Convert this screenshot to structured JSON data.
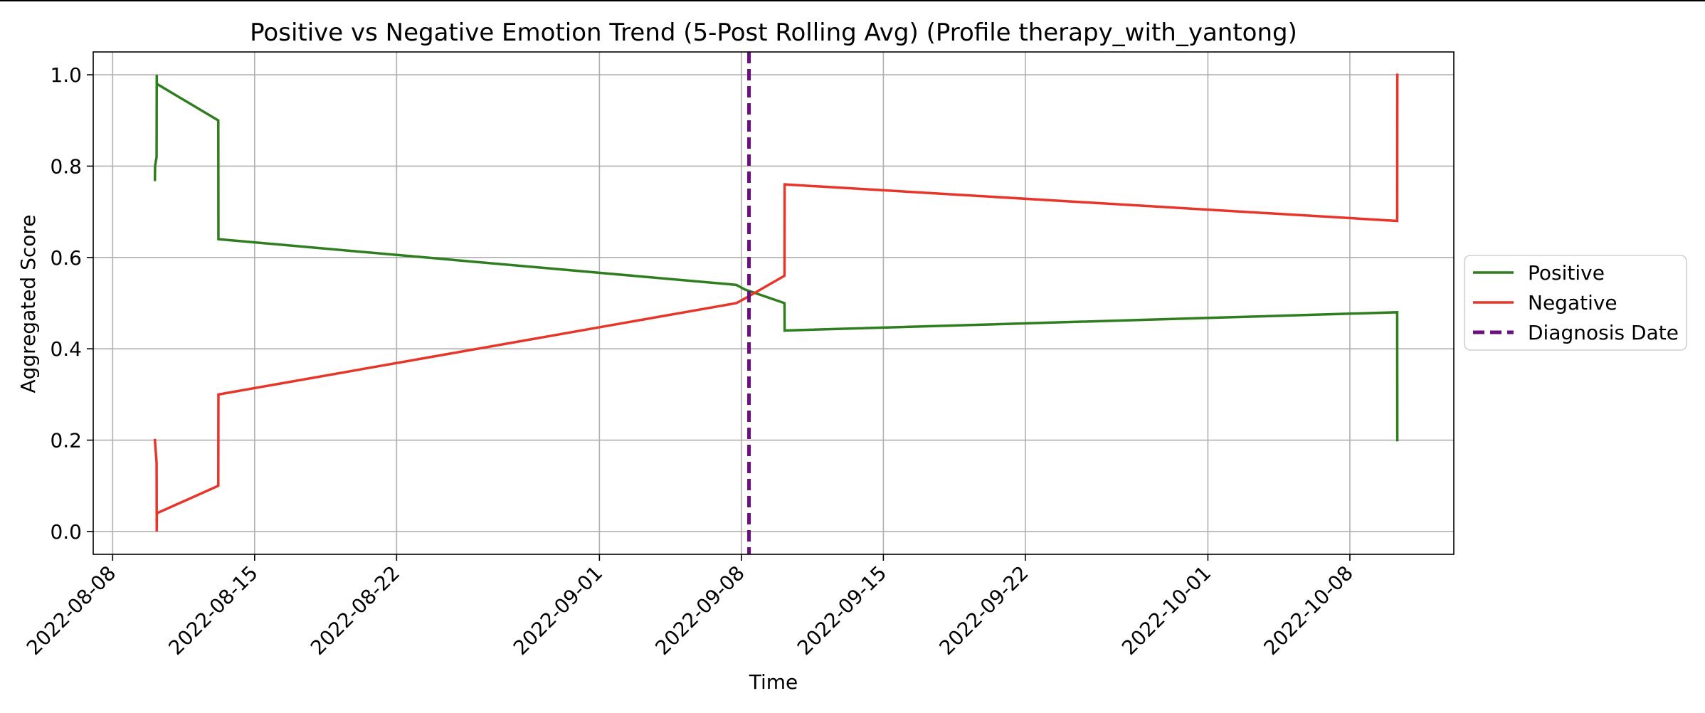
{
  "chart_data": {
    "type": "line",
    "title": "Positive vs Negative Emotion Trend (5-Post Rolling Avg) (Profile therapy_with_yantong)",
    "xlabel": "Time",
    "ylabel": "Aggregated Score",
    "x_type": "date",
    "xlim": [
      "2022-08-07T01:00",
      "2022-10-13T03:00"
    ],
    "ylim": [
      -0.05,
      1.05
    ],
    "x_ticks": [
      "2022-08-08",
      "2022-08-15",
      "2022-08-22",
      "2022-09-01",
      "2022-09-08",
      "2022-09-15",
      "2022-09-22",
      "2022-10-01",
      "2022-10-08"
    ],
    "y_ticks": [
      0.0,
      0.2,
      0.4,
      0.6,
      0.8,
      1.0
    ],
    "y_tick_labels": [
      "0.0",
      "0.2",
      "0.4",
      "0.6",
      "0.8",
      "1.0"
    ],
    "grid": true,
    "legend_position": "right, outside",
    "series": [
      {
        "name": "Positive",
        "color": "#2e7d1e",
        "style": "solid",
        "points": [
          [
            "2022-08-10T02:00",
            0.77
          ],
          [
            "2022-08-10T02:10",
            0.8
          ],
          [
            "2022-08-10T04:00",
            0.82
          ],
          [
            "2022-08-10T04:10",
            1.0
          ],
          [
            "2022-08-10T04:20",
            0.98
          ],
          [
            "2022-08-13T05:00",
            0.9
          ],
          [
            "2022-08-13T05:10",
            0.64
          ],
          [
            "2022-09-07T18:00",
            0.54
          ],
          [
            "2022-09-08T04:00",
            0.53
          ],
          [
            "2022-09-10T03:00",
            0.5
          ],
          [
            "2022-09-10T03:10",
            0.44
          ],
          [
            "2022-10-10T08:00",
            0.48
          ],
          [
            "2022-10-10T08:10",
            0.2
          ]
        ]
      },
      {
        "name": "Negative",
        "color": "#e8352a",
        "style": "solid",
        "points": [
          [
            "2022-08-10T02:00",
            0.2
          ],
          [
            "2022-08-10T04:00",
            0.15
          ],
          [
            "2022-08-10T04:10",
            0.0
          ],
          [
            "2022-08-10T04:20",
            0.04
          ],
          [
            "2022-08-13T05:00",
            0.1
          ],
          [
            "2022-08-13T05:10",
            0.3
          ],
          [
            "2022-09-07T18:00",
            0.5
          ],
          [
            "2022-09-08T04:00",
            0.51
          ],
          [
            "2022-09-10T03:00",
            0.56
          ],
          [
            "2022-09-10T03:10",
            0.76
          ],
          [
            "2022-10-10T08:00",
            0.68
          ],
          [
            "2022-10-10T08:10",
            1.0
          ]
        ]
      }
    ],
    "vlines": [
      {
        "name": "Diagnosis Date",
        "x": "2022-09-08T09:00",
        "color": "#6a0f7d",
        "style": "dashed"
      }
    ],
    "legend": [
      "Positive",
      "Negative",
      "Diagnosis Date"
    ]
  }
}
